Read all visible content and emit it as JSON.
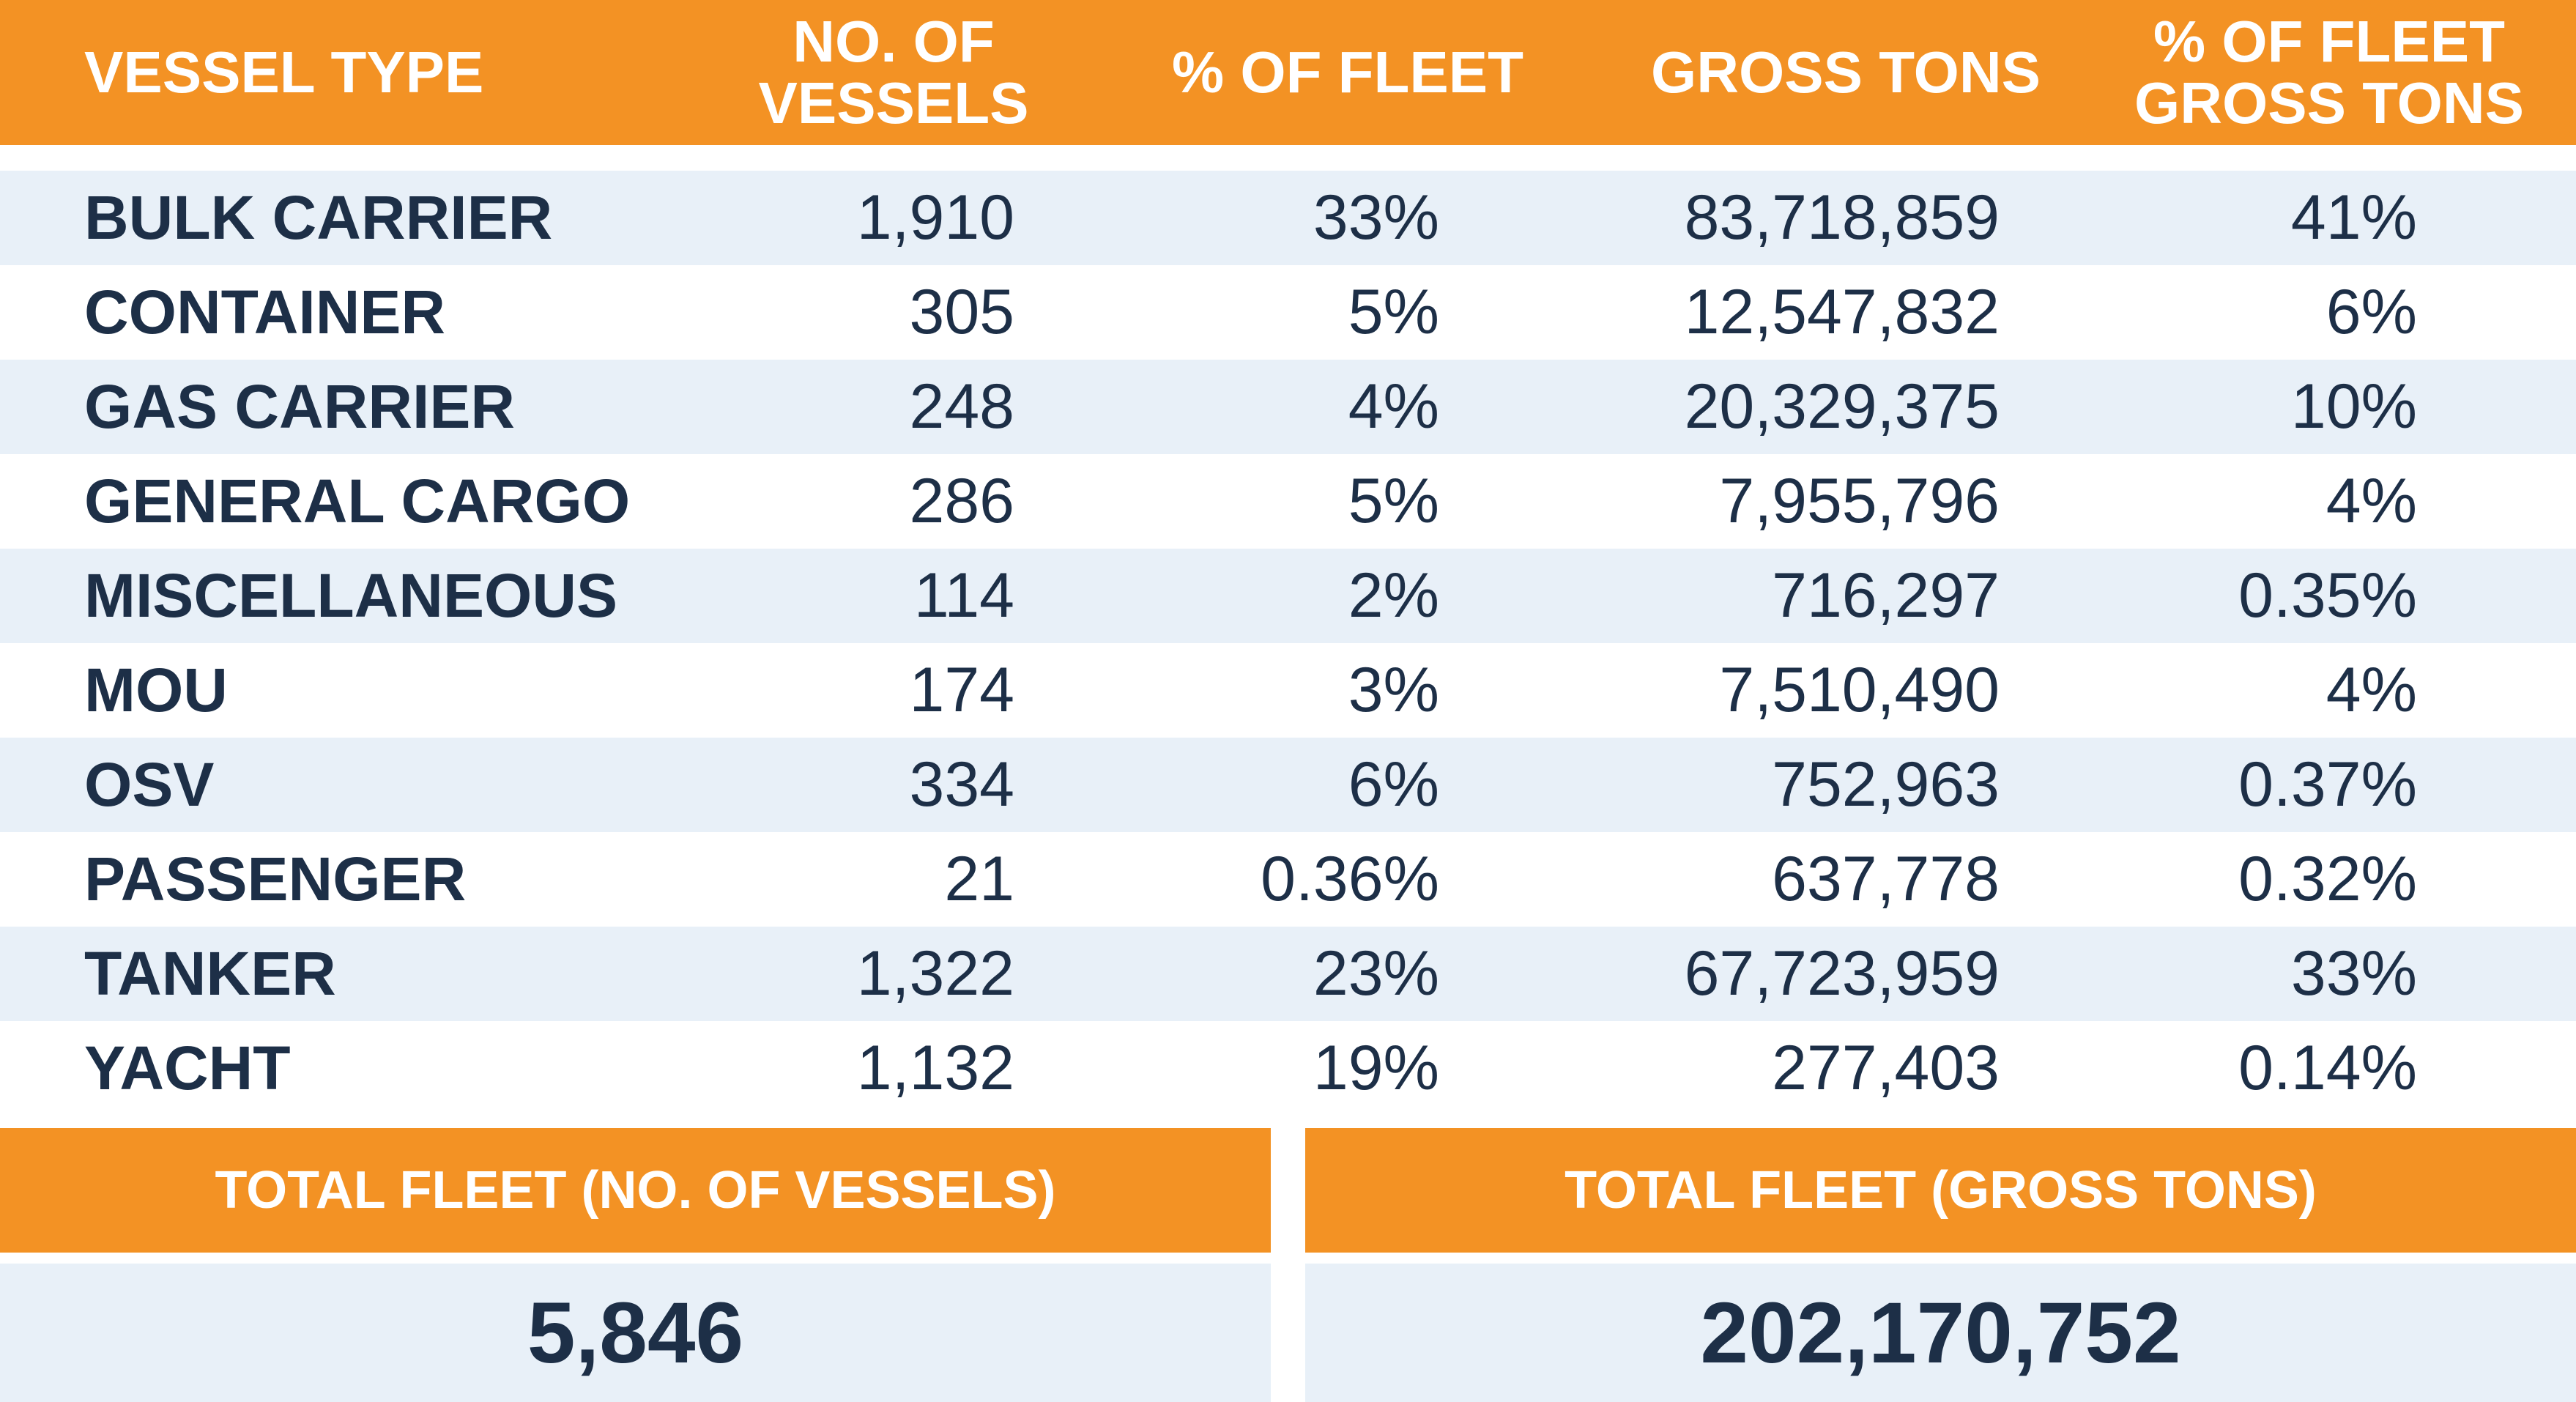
{
  "chart_data": {
    "type": "table",
    "columns": [
      "VESSEL TYPE",
      "NO. OF VESSELS",
      "% OF FLEET",
      "GROSS TONS",
      "% OF FLEET GROSS TONS"
    ],
    "rows": [
      [
        "BULK CARRIER",
        "1,910",
        "33%",
        "83,718,859",
        "41%"
      ],
      [
        "CONTAINER",
        "305",
        "5%",
        "12,547,832",
        "6%"
      ],
      [
        "GAS CARRIER",
        "248",
        "4%",
        "20,329,375",
        "10%"
      ],
      [
        "GENERAL CARGO",
        "286",
        "5%",
        "7,955,796",
        "4%"
      ],
      [
        "MISCELLANEOUS",
        "114",
        "2%",
        "716,297",
        "0.35%"
      ],
      [
        "MOU",
        "174",
        "3%",
        "7,510,490",
        "4%"
      ],
      [
        "OSV",
        "334",
        "6%",
        "752,963",
        "0.37%"
      ],
      [
        "PASSENGER",
        "21",
        "0.36%",
        "637,778",
        "0.32%"
      ],
      [
        "TANKER",
        "1,322",
        "23%",
        "67,723,959",
        "33%"
      ],
      [
        "YACHT",
        "1,132",
        "19%",
        "277,403",
        "0.14%"
      ]
    ],
    "totals": [
      {
        "label": "TOTAL FLEET (NO. OF VESSELS)",
        "value": "5,846"
      },
      {
        "label": "TOTAL FLEET (GROSS TONS)",
        "value": "202,170,752"
      }
    ]
  },
  "colors": {
    "header_bg": "#f39224",
    "header_text": "#ffffff",
    "row_shade": "#e8f0f8",
    "body_text": "#1d2f47"
  }
}
